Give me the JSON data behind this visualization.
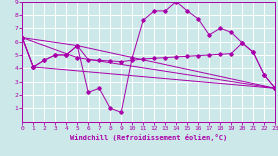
{
  "xlabel": "Windchill (Refroidissement éolien,°C)",
  "xlim": [
    0,
    23
  ],
  "ylim": [
    0,
    9
  ],
  "xticks": [
    0,
    1,
    2,
    3,
    4,
    5,
    6,
    7,
    8,
    9,
    10,
    11,
    12,
    13,
    14,
    15,
    16,
    17,
    18,
    19,
    20,
    21,
    22,
    23
  ],
  "yticks": [
    1,
    2,
    3,
    4,
    5,
    6,
    7,
    8,
    9
  ],
  "bg_color": "#cce8e8",
  "line_color": "#aa00aa",
  "grid_color": "#ffffff",
  "lines": [
    {
      "x": [
        0,
        1,
        2,
        3,
        4,
        5,
        6,
        7,
        8,
        9,
        10,
        11,
        12,
        13,
        14,
        15,
        16,
        17,
        18,
        19,
        20,
        21,
        22,
        23
      ],
      "y": [
        6.3,
        4.1,
        4.6,
        5.0,
        5.0,
        5.7,
        2.2,
        2.5,
        1.0,
        0.7,
        4.8,
        7.6,
        8.3,
        8.3,
        9.0,
        8.3,
        7.7,
        6.5,
        7.0,
        6.7,
        5.9,
        5.2,
        3.5,
        2.5
      ]
    },
    {
      "x": [
        0,
        1,
        2,
        3,
        4,
        5,
        6,
        7,
        8,
        9,
        10,
        11,
        12,
        13,
        14,
        15,
        16,
        17,
        18,
        19,
        20,
        21,
        22,
        23
      ],
      "y": [
        6.3,
        4.1,
        4.6,
        5.0,
        5.0,
        5.7,
        4.65,
        4.6,
        4.55,
        4.5,
        4.6,
        4.7,
        4.75,
        4.8,
        4.85,
        4.9,
        4.95,
        5.0,
        5.05,
        5.1,
        5.9,
        5.2,
        3.5,
        2.5
      ]
    },
    {
      "x": [
        0,
        1,
        23
      ],
      "y": [
        6.3,
        4.1,
        2.5
      ]
    },
    {
      "x": [
        0,
        5,
        23
      ],
      "y": [
        6.3,
        5.7,
        2.5
      ]
    },
    {
      "x": [
        0,
        5,
        23
      ],
      "y": [
        6.3,
        4.8,
        2.5
      ]
    }
  ]
}
